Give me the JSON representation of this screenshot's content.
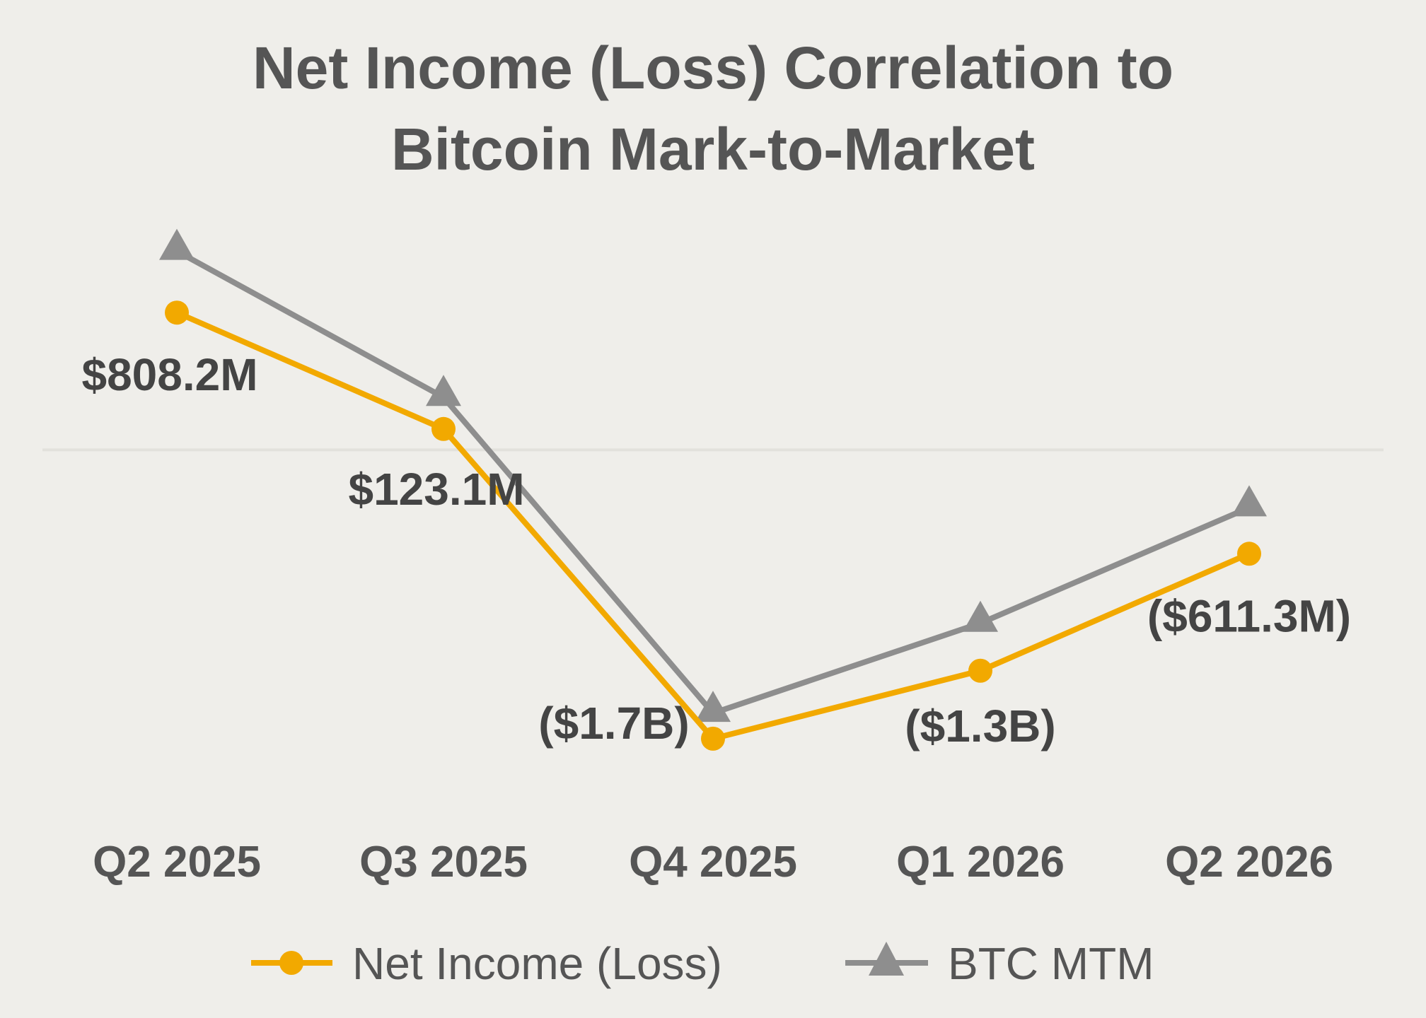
{
  "chart_data": {
    "type": "line",
    "title_line1": "Net Income (Loss) Correlation to",
    "title_line2": "Bitcoin Mark-to-Market",
    "xlabel": "",
    "ylabel": "",
    "categories": [
      "Q2 2025",
      "Q3 2025",
      "Q4 2025",
      "Q1 2026",
      "Q2 2026"
    ],
    "ylim": [
      -2.2,
      1.4
    ],
    "zero_line": true,
    "legend_position": "bottom",
    "series": [
      {
        "name": "Net Income (Loss)",
        "color": "#f2a900",
        "marker": "circle",
        "values": [
          0.8082,
          0.1231,
          -1.7,
          -1.3,
          -0.6113
        ],
        "labels": [
          "$808.2M",
          "$123.1M",
          "($1.7B)",
          "($1.3B)",
          "($611.3M)"
        ]
      },
      {
        "name": "BTC MTM",
        "color": "#8e8e8e",
        "marker": "triangle",
        "values": [
          1.17,
          0.31,
          -1.55,
          -1.02,
          -0.34
        ]
      }
    ]
  }
}
